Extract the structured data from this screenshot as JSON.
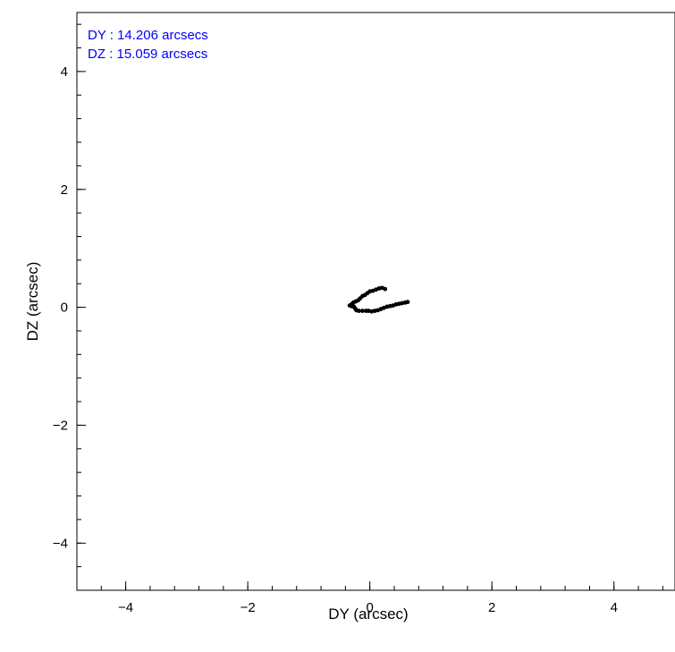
{
  "chart_data": {
    "type": "scatter",
    "xlabel": "DY (arcsec)",
    "ylabel": "DZ (arcsec)",
    "xlim": [
      -4.8,
      5.0
    ],
    "ylim": [
      -4.8,
      5.0
    ],
    "xticks": [
      -4,
      -2,
      0,
      2,
      4
    ],
    "yticks": [
      -4,
      -2,
      0,
      2,
      4
    ],
    "xtick_labels": [
      "−4",
      "−2",
      "0",
      "2",
      "4"
    ],
    "ytick_labels": [
      "−4",
      "−2",
      "0",
      "2",
      "4"
    ],
    "minor_step": 0.4,
    "grid": false,
    "annotations": [
      "DY : 14.206 arcsecs",
      "DZ : 15.059 arcsecs"
    ],
    "annotation_color": "#0000ff",
    "series": [
      {
        "color": "#000000",
        "points": [
          [
            0.25,
            0.31
          ],
          [
            0.2,
            0.33
          ],
          [
            0.15,
            0.32
          ],
          [
            0.1,
            0.3
          ],
          [
            0.05,
            0.28
          ],
          [
            0.0,
            0.27
          ],
          [
            -0.04,
            0.24
          ],
          [
            -0.08,
            0.21
          ],
          [
            -0.12,
            0.19
          ],
          [
            -0.16,
            0.15
          ],
          [
            -0.19,
            0.12
          ],
          [
            -0.23,
            0.1
          ],
          [
            -0.27,
            0.08
          ],
          [
            -0.3,
            0.05
          ],
          [
            -0.33,
            0.03
          ],
          [
            -0.3,
            0.02
          ],
          [
            -0.26,
            0.01
          ],
          [
            -0.24,
            -0.02
          ],
          [
            -0.22,
            -0.05
          ],
          [
            -0.18,
            -0.06
          ],
          [
            -0.12,
            -0.06
          ],
          [
            -0.06,
            -0.06
          ],
          [
            -0.02,
            -0.06
          ],
          [
            0.03,
            -0.07
          ],
          [
            0.08,
            -0.06
          ],
          [
            0.13,
            -0.05
          ],
          [
            0.18,
            -0.03
          ],
          [
            0.23,
            -0.01
          ],
          [
            0.28,
            0.01
          ],
          [
            0.33,
            0.02
          ],
          [
            0.38,
            0.03
          ],
          [
            0.43,
            0.05
          ],
          [
            0.48,
            0.06
          ],
          [
            0.53,
            0.07
          ],
          [
            0.58,
            0.08
          ],
          [
            0.62,
            0.09
          ]
        ]
      }
    ]
  }
}
